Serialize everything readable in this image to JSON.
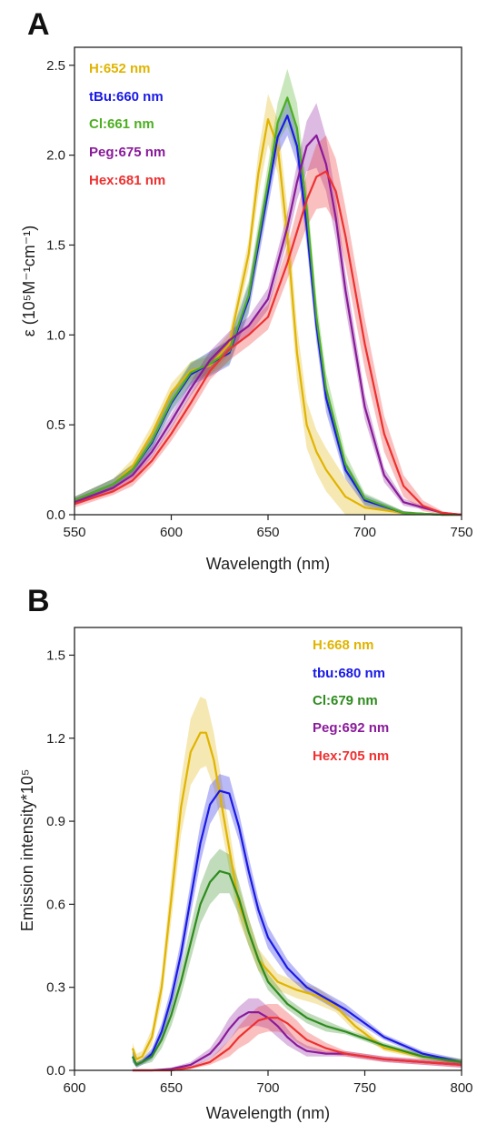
{
  "chart_data": [
    {
      "panel_label": "A",
      "type": "line",
      "xlabel": "Wavelength (nm)",
      "ylabel": "ε (10⁵M⁻¹cm⁻¹)",
      "xlim": [
        550,
        750
      ],
      "ylim": [
        0,
        2.6
      ],
      "xticks": [
        550,
        600,
        650,
        700,
        750
      ],
      "yticks": [
        0.0,
        0.5,
        1.0,
        1.5,
        2.0,
        2.5
      ],
      "ytick_labels": [
        "0.0",
        "0.5",
        "1.0",
        "1.5",
        "2.0",
        "2.5"
      ],
      "grid": false,
      "legend_position": "top-left",
      "series": [
        {
          "name": "H:652 nm",
          "color": "#e0b400",
          "x": [
            550,
            570,
            580,
            590,
            600,
            610,
            620,
            630,
            640,
            645,
            650,
            655,
            660,
            665,
            670,
            675,
            680,
            690,
            700,
            720,
            740,
            750
          ],
          "y": [
            0.08,
            0.17,
            0.27,
            0.45,
            0.68,
            0.8,
            0.83,
            0.95,
            1.45,
            1.9,
            2.2,
            2.05,
            1.55,
            0.9,
            0.5,
            0.35,
            0.25,
            0.1,
            0.04,
            0.01,
            0.0,
            0.0
          ],
          "band": [
            0.02,
            0.03,
            0.04,
            0.05,
            0.05,
            0.05,
            0.05,
            0.06,
            0.08,
            0.12,
            0.14,
            0.15,
            0.16,
            0.15,
            0.13,
            0.12,
            0.12,
            0.1,
            0.04,
            0.01,
            0.0,
            0.0
          ]
        },
        {
          "name": "tBu:660 nm",
          "color": "#1a1ae6",
          "x": [
            550,
            570,
            580,
            590,
            600,
            610,
            620,
            630,
            640,
            650,
            655,
            660,
            665,
            670,
            675,
            680,
            690,
            700,
            720,
            740,
            750
          ],
          "y": [
            0.08,
            0.17,
            0.25,
            0.4,
            0.62,
            0.78,
            0.84,
            0.9,
            1.2,
            1.8,
            2.1,
            2.22,
            2.05,
            1.6,
            1.05,
            0.65,
            0.25,
            0.08,
            0.01,
            0.0,
            0.0
          ],
          "band": [
            0.02,
            0.03,
            0.03,
            0.04,
            0.05,
            0.06,
            0.07,
            0.07,
            0.08,
            0.09,
            0.1,
            0.11,
            0.1,
            0.1,
            0.09,
            0.08,
            0.05,
            0.03,
            0.01,
            0.0,
            0.0
          ]
        },
        {
          "name": "Cl:661 nm",
          "color": "#4caf20",
          "x": [
            550,
            570,
            580,
            590,
            600,
            610,
            620,
            630,
            640,
            650,
            655,
            660,
            665,
            670,
            675,
            680,
            690,
            700,
            720,
            740,
            750
          ],
          "y": [
            0.08,
            0.17,
            0.25,
            0.41,
            0.63,
            0.79,
            0.84,
            0.91,
            1.22,
            1.85,
            2.18,
            2.32,
            2.15,
            1.7,
            1.1,
            0.7,
            0.28,
            0.09,
            0.01,
            0.0,
            0.0
          ],
          "band": [
            0.02,
            0.03,
            0.03,
            0.04,
            0.05,
            0.06,
            0.06,
            0.07,
            0.08,
            0.1,
            0.11,
            0.16,
            0.14,
            0.12,
            0.1,
            0.09,
            0.06,
            0.03,
            0.01,
            0.0,
            0.0
          ]
        },
        {
          "name": "Peg:675 nm",
          "color": "#8a1a9a",
          "x": [
            550,
            570,
            580,
            590,
            600,
            610,
            620,
            630,
            640,
            650,
            660,
            665,
            670,
            675,
            680,
            685,
            690,
            700,
            710,
            720,
            740,
            750
          ],
          "y": [
            0.07,
            0.15,
            0.22,
            0.35,
            0.52,
            0.7,
            0.86,
            0.97,
            1.05,
            1.2,
            1.6,
            1.85,
            2.05,
            2.11,
            1.95,
            1.65,
            1.25,
            0.6,
            0.22,
            0.07,
            0.01,
            0.0
          ],
          "band": [
            0.02,
            0.02,
            0.03,
            0.03,
            0.04,
            0.04,
            0.05,
            0.05,
            0.05,
            0.06,
            0.08,
            0.1,
            0.14,
            0.18,
            0.15,
            0.12,
            0.1,
            0.07,
            0.04,
            0.02,
            0.0,
            0.0
          ]
        },
        {
          "name": "Hex:681 nm",
          "color": "#ee3030",
          "x": [
            550,
            570,
            580,
            590,
            600,
            610,
            620,
            630,
            640,
            650,
            660,
            670,
            675,
            680,
            685,
            690,
            700,
            710,
            720,
            730,
            740,
            750
          ],
          "y": [
            0.06,
            0.13,
            0.19,
            0.3,
            0.45,
            0.62,
            0.8,
            0.92,
            1.0,
            1.1,
            1.4,
            1.75,
            1.88,
            1.91,
            1.8,
            1.55,
            0.95,
            0.45,
            0.16,
            0.05,
            0.01,
            0.0
          ],
          "band": [
            0.02,
            0.02,
            0.03,
            0.03,
            0.04,
            0.05,
            0.05,
            0.06,
            0.06,
            0.07,
            0.09,
            0.15,
            0.18,
            0.2,
            0.18,
            0.16,
            0.14,
            0.1,
            0.06,
            0.03,
            0.01,
            0.0
          ]
        }
      ]
    },
    {
      "panel_label": "B",
      "type": "line",
      "xlabel": "Wavelength (nm)",
      "ylabel": "Emission intensity*10⁵",
      "xlim": [
        600,
        800
      ],
      "ylim": [
        0,
        1.6
      ],
      "xticks": [
        600,
        650,
        700,
        750,
        800
      ],
      "yticks": [
        0.0,
        0.3,
        0.6,
        0.9,
        1.2,
        1.5
      ],
      "ytick_labels": [
        "0.0",
        "0.3",
        "0.6",
        "0.9",
        "1.2",
        "1.5"
      ],
      "grid": false,
      "legend_position": "top-right",
      "series": [
        {
          "name": "H:668 nm",
          "color": "#e0b400",
          "x": [
            630,
            632,
            635,
            640,
            645,
            650,
            655,
            660,
            665,
            668,
            672,
            678,
            685,
            695,
            705,
            715,
            725,
            735,
            745,
            760,
            780,
            800
          ],
          "y": [
            0.08,
            0.04,
            0.05,
            0.12,
            0.3,
            0.62,
            0.95,
            1.15,
            1.22,
            1.22,
            1.12,
            0.88,
            0.6,
            0.4,
            0.32,
            0.29,
            0.27,
            0.23,
            0.16,
            0.08,
            0.05,
            0.03
          ],
          "band": [
            0.02,
            0.02,
            0.02,
            0.03,
            0.05,
            0.08,
            0.1,
            0.12,
            0.13,
            0.12,
            0.1,
            0.08,
            0.06,
            0.04,
            0.03,
            0.03,
            0.03,
            0.02,
            0.02,
            0.01,
            0.01,
            0.01
          ]
        },
        {
          "name": "tbu:680 nm",
          "color": "#1a1ae6",
          "x": [
            630,
            632,
            635,
            640,
            645,
            650,
            655,
            660,
            665,
            670,
            675,
            680,
            685,
            690,
            695,
            700,
            710,
            720,
            730,
            740,
            760,
            780,
            800
          ],
          "y": [
            0.05,
            0.02,
            0.03,
            0.06,
            0.14,
            0.26,
            0.42,
            0.62,
            0.82,
            0.96,
            1.01,
            1.0,
            0.88,
            0.72,
            0.58,
            0.48,
            0.37,
            0.3,
            0.26,
            0.22,
            0.12,
            0.06,
            0.03
          ],
          "band": [
            0.02,
            0.01,
            0.01,
            0.02,
            0.03,
            0.04,
            0.05,
            0.06,
            0.07,
            0.07,
            0.06,
            0.06,
            0.05,
            0.05,
            0.04,
            0.04,
            0.03,
            0.02,
            0.02,
            0.02,
            0.01,
            0.01,
            0.01
          ]
        },
        {
          "name": "Cl:679 nm",
          "color": "#2e8b1e",
          "x": [
            630,
            632,
            635,
            640,
            645,
            650,
            655,
            660,
            665,
            670,
            675,
            680,
            685,
            690,
            695,
            700,
            710,
            720,
            730,
            740,
            760,
            780,
            800
          ],
          "y": [
            0.05,
            0.02,
            0.03,
            0.05,
            0.11,
            0.2,
            0.32,
            0.46,
            0.6,
            0.68,
            0.72,
            0.71,
            0.62,
            0.5,
            0.4,
            0.32,
            0.24,
            0.19,
            0.16,
            0.14,
            0.09,
            0.05,
            0.03
          ],
          "band": [
            0.02,
            0.01,
            0.01,
            0.02,
            0.03,
            0.04,
            0.05,
            0.06,
            0.07,
            0.08,
            0.08,
            0.07,
            0.06,
            0.05,
            0.04,
            0.03,
            0.02,
            0.02,
            0.02,
            0.01,
            0.01,
            0.01,
            0.01
          ]
        },
        {
          "name": "Peg:692 nm",
          "color": "#8a1a9a",
          "x": [
            630,
            640,
            650,
            660,
            670,
            675,
            680,
            685,
            690,
            695,
            700,
            705,
            710,
            715,
            720,
            730,
            740,
            760,
            780,
            800
          ],
          "y": [
            0.0,
            0.0,
            0.005,
            0.02,
            0.06,
            0.1,
            0.15,
            0.19,
            0.21,
            0.21,
            0.19,
            0.16,
            0.12,
            0.09,
            0.07,
            0.06,
            0.06,
            0.04,
            0.03,
            0.02
          ],
          "band": [
            0.0,
            0.0,
            0.005,
            0.01,
            0.02,
            0.03,
            0.04,
            0.04,
            0.05,
            0.05,
            0.04,
            0.04,
            0.03,
            0.02,
            0.02,
            0.01,
            0.01,
            0.01,
            0.01,
            0.01
          ]
        },
        {
          "name": "Hex:705 nm",
          "color": "#ee3030",
          "x": [
            630,
            640,
            650,
            660,
            670,
            680,
            685,
            690,
            695,
            700,
            705,
            710,
            715,
            720,
            730,
            740,
            760,
            780,
            800
          ],
          "y": [
            0.0,
            0.0,
            0.0,
            0.01,
            0.03,
            0.08,
            0.12,
            0.15,
            0.18,
            0.19,
            0.19,
            0.17,
            0.14,
            0.11,
            0.08,
            0.06,
            0.04,
            0.03,
            0.02
          ],
          "band": [
            0.0,
            0.0,
            0.0,
            0.005,
            0.01,
            0.03,
            0.04,
            0.05,
            0.05,
            0.05,
            0.05,
            0.04,
            0.04,
            0.03,
            0.02,
            0.01,
            0.01,
            0.01,
            0.01
          ]
        }
      ]
    }
  ]
}
